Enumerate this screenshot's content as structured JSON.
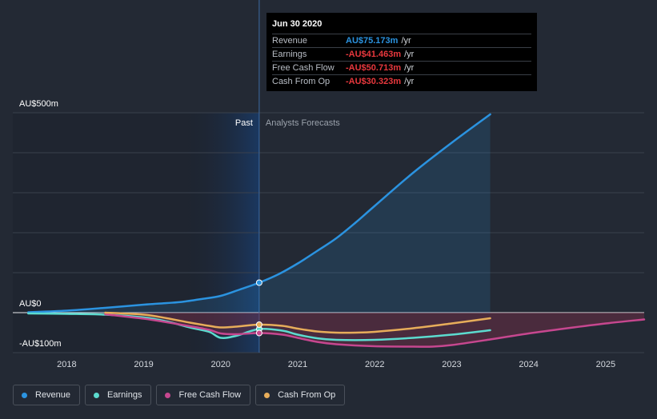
{
  "chart_data": {
    "type": "line",
    "y_labels": [
      "AU$500m",
      "AU$0",
      "-AU$100m"
    ],
    "x_ticks": [
      2018,
      2019,
      2020,
      2021,
      2022,
      2023,
      2024,
      2025
    ],
    "xlim": [
      2017.3,
      2025.5
    ],
    "ylim": [
      -100,
      500
    ],
    "past_label": "Past",
    "forecast_label": "Analysts Forecasts",
    "divider_x": 2020.5,
    "series": [
      {
        "name": "Revenue",
        "color": "#2b93e0",
        "fill": true,
        "x": [
          2017.5,
          2018.0,
          2018.5,
          2019.0,
          2019.3,
          2019.5,
          2019.75,
          2020.0,
          2020.25,
          2020.5,
          2020.75,
          2021.0,
          2021.25,
          2021.5,
          2021.75,
          2022.0,
          2022.5,
          2023.0,
          2023.5
        ],
        "y": [
          1,
          5,
          12,
          20,
          24,
          27,
          34,
          42,
          58,
          75,
          96,
          123,
          154,
          186,
          225,
          267,
          350,
          425,
          496
        ]
      },
      {
        "name": "Earnings",
        "color": "#5cdbcf",
        "fill": false,
        "x": [
          2017.5,
          2018.0,
          2018.5,
          2019.0,
          2019.3,
          2019.6,
          2019.85,
          2020.0,
          2020.2,
          2020.5,
          2020.8,
          2021.0,
          2021.25,
          2021.5,
          2022.0,
          2022.5,
          2023.0,
          2023.5
        ],
        "y": [
          -2,
          -3,
          -5,
          -12,
          -22,
          -37,
          -48,
          -63,
          -58,
          -41,
          -45,
          -55,
          -64,
          -68,
          -68,
          -63,
          -55,
          -44
        ]
      },
      {
        "name": "Free Cash Flow",
        "color": "#c6478f",
        "fill": false,
        "x": [
          2018.5,
          2019.0,
          2019.3,
          2019.6,
          2019.85,
          2020.0,
          2020.2,
          2020.5,
          2020.8,
          2021.0,
          2021.25,
          2021.5,
          2022.0,
          2022.5,
          2022.75,
          2023.0,
          2023.5,
          2024.0,
          2024.5,
          2025.0,
          2025.5
        ],
        "y": [
          -4,
          -15,
          -24,
          -34,
          -43,
          -52,
          -54,
          -51,
          -55,
          -63,
          -73,
          -79,
          -84,
          -85,
          -85,
          -81,
          -67,
          -52,
          -39,
          -27,
          -17
        ]
      },
      {
        "name": "Cash From Op",
        "color": "#e7ad5a",
        "fill": false,
        "x": [
          2018.5,
          2019.0,
          2019.3,
          2019.6,
          2019.85,
          2020.0,
          2020.2,
          2020.5,
          2020.8,
          2021.0,
          2021.25,
          2021.5,
          2021.75,
          2022.0,
          2022.5,
          2023.0,
          2023.5
        ],
        "y": [
          0,
          -5,
          -14,
          -25,
          -33,
          -37,
          -35,
          -30,
          -33,
          -40,
          -47,
          -50,
          -50,
          -48,
          -39,
          -27,
          -14
        ]
      }
    ]
  },
  "tooltip": {
    "title": "Jun 30 2020",
    "rows": [
      {
        "label": "Revenue",
        "value": "AU$75.173m",
        "unit": "/yr",
        "color": "#2b93e0"
      },
      {
        "label": "Earnings",
        "value": "-AU$41.463m",
        "unit": "/yr",
        "color": "#e8383d"
      },
      {
        "label": "Free Cash Flow",
        "value": "-AU$50.713m",
        "unit": "/yr",
        "color": "#e8383d"
      },
      {
        "label": "Cash From Op",
        "value": "-AU$30.323m",
        "unit": "/yr",
        "color": "#e8383d"
      }
    ]
  },
  "legend": [
    {
      "label": "Revenue",
      "color": "#2b93e0"
    },
    {
      "label": "Earnings",
      "color": "#5cdbcf"
    },
    {
      "label": "Free Cash Flow",
      "color": "#c6478f"
    },
    {
      "label": "Cash From Op",
      "color": "#e7ad5a"
    }
  ]
}
